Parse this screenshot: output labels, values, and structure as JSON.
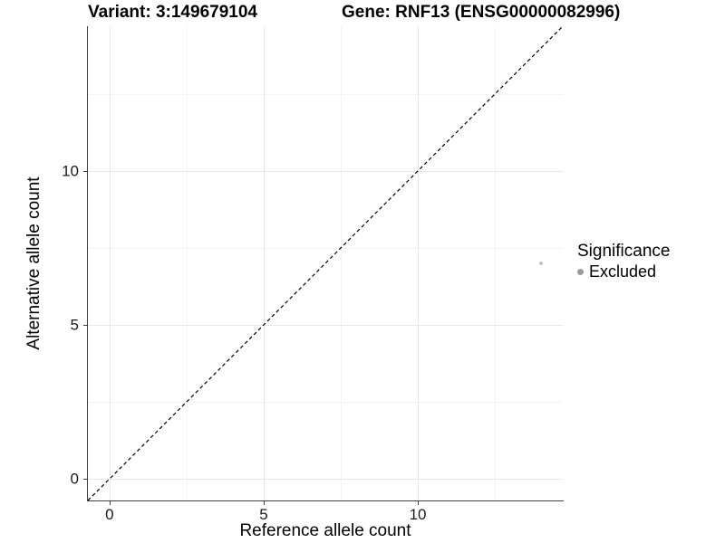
{
  "chart_data": {
    "type": "scatter",
    "title_left": "Variant: 3:149679104",
    "title_right": "Gene: RNF13 (ENSG00000082996)",
    "xlabel": "Reference allele count",
    "ylabel": "Alternative allele count",
    "xlim": [
      -0.7,
      14.7
    ],
    "ylim": [
      -0.7,
      14.7
    ],
    "x_major_ticks": [
      0,
      5,
      10
    ],
    "y_major_ticks": [
      0,
      5,
      10
    ],
    "x_minor_ticks": [
      2.5,
      7.5,
      12.5
    ],
    "y_minor_ticks": [
      2.5,
      7.5,
      12.5
    ],
    "grid": true,
    "axis_lines": "left-bottom",
    "identity_line": {
      "style": "dashed",
      "color": "#000000",
      "from": [
        -0.7,
        -0.7
      ],
      "to": [
        14.7,
        14.7
      ]
    },
    "series": [
      {
        "name": "Excluded",
        "color": "#c2c2c2",
        "marker_size_px": 4,
        "points": [
          {
            "x": 14,
            "y": 7
          }
        ]
      }
    ],
    "legend": {
      "position": "right",
      "title": "Significance",
      "entries": [
        {
          "label": "Excluded",
          "color": "#999999"
        }
      ]
    }
  },
  "colors": {
    "background": "#ffffff",
    "axis_line": "#404040",
    "grid_major": "#e7e7e7",
    "grid_minor": "#f3f3f3",
    "text": "#000000",
    "tick_text": "#1a1a1a"
  }
}
